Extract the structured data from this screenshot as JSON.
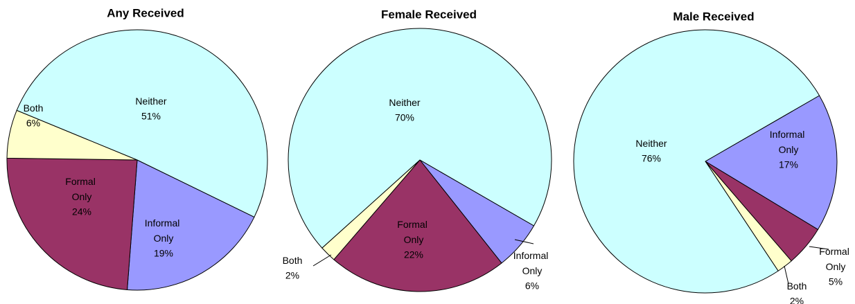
{
  "chart_data": [
    {
      "type": "pie",
      "title": "Any Received",
      "categories": [
        "Informal Only",
        "Formal Only",
        "Both",
        "Neither"
      ],
      "values": [
        19,
        24,
        6,
        51
      ],
      "value_labels": [
        "19%",
        "24%",
        "6%",
        "51%"
      ],
      "colors": [
        "#9999ff",
        "#993366",
        "#ffffcc",
        "#ccffff"
      ]
    },
    {
      "type": "pie",
      "title": "Female Received",
      "categories": [
        "Informal Only",
        "Formal Only",
        "Both",
        "Neither"
      ],
      "values": [
        6,
        22,
        2,
        70
      ],
      "value_labels": [
        "6%",
        "22%",
        "2%",
        "70%"
      ],
      "colors": [
        "#9999ff",
        "#993366",
        "#ffffcc",
        "#ccffff"
      ]
    },
    {
      "type": "pie",
      "title": "Male Received",
      "categories": [
        "Informal Only",
        "Formal Only",
        "Both",
        "Neither"
      ],
      "values": [
        17,
        5,
        2,
        76
      ],
      "value_labels": [
        "17%",
        "5%",
        "2%",
        "76%"
      ],
      "colors": [
        "#9999ff",
        "#993366",
        "#ffffcc",
        "#ccffff"
      ]
    }
  ]
}
